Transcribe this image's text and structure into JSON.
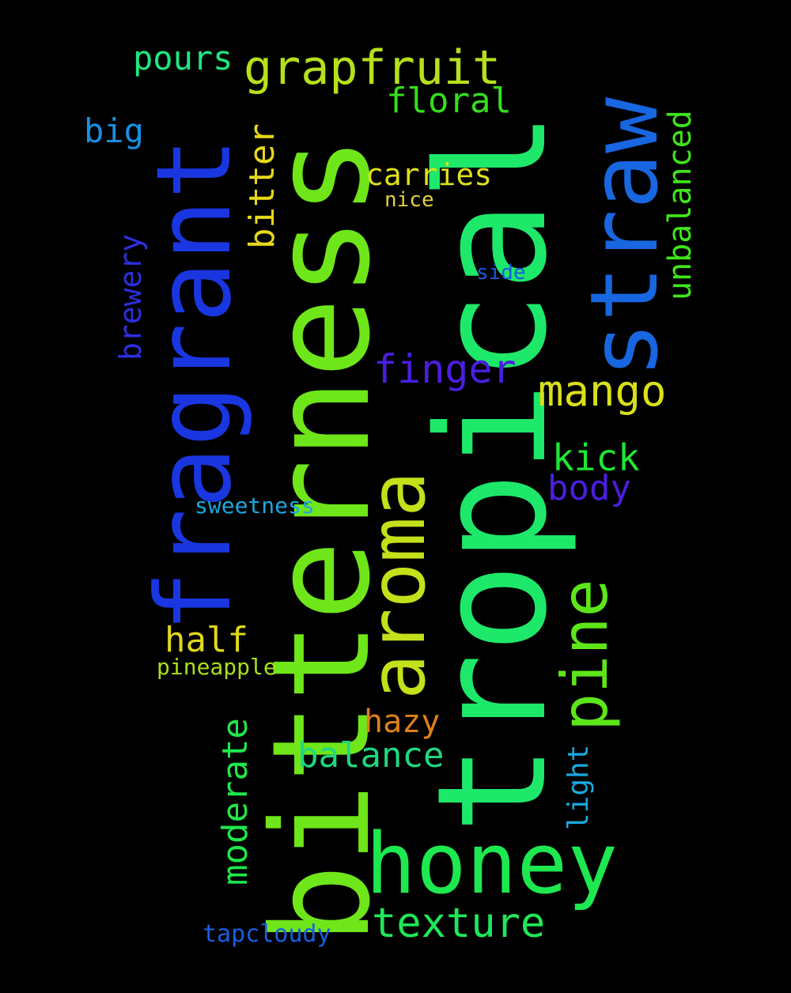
{
  "words": [
    {
      "text": "tropical",
      "color": "#1ee86a"
    },
    {
      "text": "bitterness",
      "color": "#6fe61a"
    },
    {
      "text": "fragrant",
      "color": "#1a36e0"
    },
    {
      "text": "straw",
      "color": "#1866e0"
    },
    {
      "text": "aroma",
      "color": "#c3e01a"
    },
    {
      "text": "honey",
      "color": "#1ee850"
    },
    {
      "text": "pine",
      "color": "#5ce61a"
    },
    {
      "text": "grapfruit",
      "color": "#b6e01a"
    },
    {
      "text": "mango",
      "color": "#d8e01a"
    },
    {
      "text": "finger",
      "color": "#4a1ee0"
    },
    {
      "text": "texture",
      "color": "#1ee858"
    },
    {
      "text": "unbalanced",
      "color": "#3fe61a"
    },
    {
      "text": "floral",
      "color": "#33e01a"
    },
    {
      "text": "bitter",
      "color": "#e6d81a"
    },
    {
      "text": "moderate",
      "color": "#1ee84a"
    },
    {
      "text": "kick",
      "color": "#1ee833"
    },
    {
      "text": "body",
      "color": "#4a1ee0"
    },
    {
      "text": "balance",
      "color": "#1ed880"
    },
    {
      "text": "pours",
      "color": "#1ee880"
    },
    {
      "text": "carries",
      "color": "#dce01a"
    },
    {
      "text": "brewery",
      "color": "#2e2ee0"
    },
    {
      "text": "half",
      "color": "#e0d81a"
    },
    {
      "text": "hazy",
      "color": "#e0801a"
    },
    {
      "text": "big",
      "color": "#1a90e0"
    },
    {
      "text": "light",
      "color": "#1aa8e0"
    },
    {
      "text": "sweetness",
      "color": "#1aa8e0"
    },
    {
      "text": "pineapple",
      "color": "#a8e01a"
    },
    {
      "text": "tapcloudy",
      "color": "#1a5ee0"
    },
    {
      "text": "nice",
      "color": "#e0d040"
    },
    {
      "text": "side",
      "color": "#1a58e0"
    }
  ]
}
